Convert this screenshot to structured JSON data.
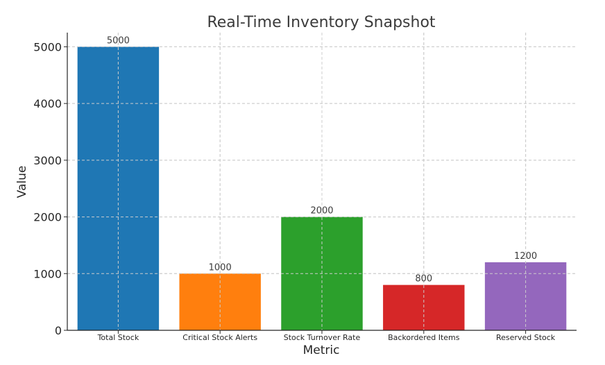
{
  "chart_data": {
    "type": "bar",
    "title": "Real-Time Inventory Snapshot",
    "xlabel": "Metric",
    "ylabel": "Value",
    "categories": [
      "Total Stock",
      "Critical Stock Alerts",
      "Stock Turnover Rate",
      "Backordered Items",
      "Reserved Stock"
    ],
    "values": [
      5000,
      1000,
      2000,
      800,
      1200
    ],
    "colors": [
      "#1f77b4",
      "#ff7f0e",
      "#2ca02c",
      "#d62728",
      "#9467bd"
    ],
    "ylim": [
      0,
      5250
    ],
    "yticks": [
      0,
      1000,
      2000,
      3000,
      4000,
      5000
    ],
    "grid": true,
    "legend": "none"
  }
}
